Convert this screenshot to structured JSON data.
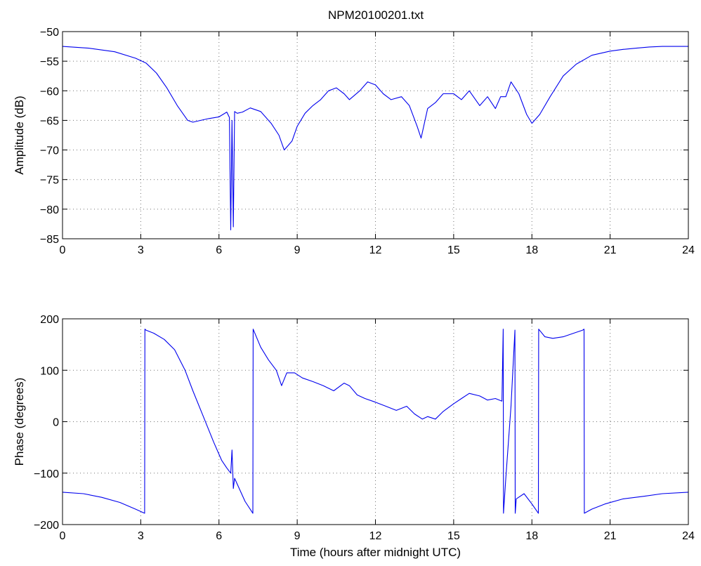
{
  "figure_title": "NPM20100201.txt",
  "colors": {
    "series": "#0000ee",
    "axes": "#000000",
    "background": "#ffffff"
  },
  "chart_data": [
    {
      "type": "line",
      "panel": "top",
      "title": "NPM20100201.txt",
      "xlabel": "",
      "ylabel": "Amplitude (dB)",
      "xlim": [
        0,
        24
      ],
      "ylim": [
        -85,
        -50
      ],
      "xticks": [
        0,
        3,
        6,
        9,
        12,
        15,
        18,
        21,
        24
      ],
      "yticks": [
        -85,
        -80,
        -75,
        -70,
        -65,
        -60,
        -55,
        -50
      ],
      "grid": true,
      "x": [
        0,
        1,
        2,
        2.8,
        3.2,
        3.6,
        4.0,
        4.4,
        4.8,
        5.0,
        5.3,
        5.6,
        6.0,
        6.3,
        6.4,
        6.45,
        6.5,
        6.55,
        6.6,
        6.7,
        6.9,
        7.2,
        7.6,
        8.0,
        8.3,
        8.5,
        8.8,
        9.0,
        9.3,
        9.6,
        9.9,
        10.2,
        10.5,
        10.8,
        11.0,
        11.4,
        11.7,
        12.0,
        12.3,
        12.6,
        13.0,
        13.3,
        13.6,
        13.75,
        14.0,
        14.3,
        14.6,
        15.0,
        15.3,
        15.6,
        16.0,
        16.3,
        16.6,
        16.8,
        17.0,
        17.2,
        17.5,
        17.8,
        18.0,
        18.3,
        18.7,
        19.2,
        19.7,
        20.3,
        21.0,
        21.5,
        22.0,
        22.5,
        23.0,
        23.5,
        24.0
      ],
      "y": [
        -52.5,
        -52.8,
        -53.4,
        -54.5,
        -55.3,
        -57.0,
        -59.5,
        -62.5,
        -65.0,
        -65.3,
        -65.0,
        -64.7,
        -64.4,
        -63.6,
        -64.5,
        -83.5,
        -65.0,
        -83.0,
        -63.5,
        -63.8,
        -63.6,
        -62.9,
        -63.5,
        -65.5,
        -67.5,
        -70.0,
        -68.5,
        -66.0,
        -63.8,
        -62.5,
        -61.5,
        -60.0,
        -59.5,
        -60.5,
        -61.5,
        -60.0,
        -58.5,
        -59.0,
        -60.5,
        -61.5,
        -61.0,
        -62.5,
        -66.0,
        -68.0,
        -63.0,
        -62.0,
        -60.5,
        -60.5,
        -61.5,
        -60.0,
        -62.5,
        -61.0,
        -63.0,
        -61.0,
        -61.0,
        -58.5,
        -60.5,
        -64.0,
        -65.5,
        -64.0,
        -61.0,
        -57.5,
        -55.5,
        -54.0,
        -53.3,
        -53.0,
        -52.8,
        -52.6,
        -52.5,
        -52.5,
        -52.5
      ]
    },
    {
      "type": "line",
      "panel": "bottom",
      "title": "",
      "xlabel": "Time (hours after midnight UTC)",
      "ylabel": "Phase (degrees)",
      "xlim": [
        0,
        24
      ],
      "ylim": [
        -200,
        200
      ],
      "xticks": [
        0,
        3,
        6,
        9,
        12,
        15,
        18,
        21,
        24
      ],
      "yticks": [
        -200,
        -100,
        0,
        100,
        200
      ],
      "grid": true,
      "x": [
        0,
        0.8,
        1.5,
        2.2,
        2.8,
        3.15,
        3.16,
        3.2,
        3.5,
        3.9,
        4.3,
        4.7,
        5.0,
        5.4,
        5.8,
        6.1,
        6.3,
        6.45,
        6.5,
        6.55,
        6.6,
        7.0,
        7.3,
        7.31,
        7.35,
        7.6,
        7.9,
        8.2,
        8.4,
        8.6,
        8.9,
        9.2,
        9.6,
        10.0,
        10.4,
        10.8,
        11.0,
        11.3,
        11.6,
        12.0,
        12.4,
        12.8,
        13.2,
        13.5,
        13.8,
        14.0,
        14.3,
        14.6,
        15.0,
        15.3,
        15.6,
        16.0,
        16.3,
        16.6,
        16.85,
        16.9,
        16.91,
        17.0,
        17.2,
        17.35,
        17.36,
        17.4,
        17.7,
        18.0,
        18.25,
        18.26,
        18.5,
        18.8,
        19.2,
        19.6,
        19.95,
        20.0,
        20.01,
        20.3,
        20.8,
        21.5,
        22.3,
        23.0,
        24.0
      ],
      "y": [
        -137,
        -140,
        -147,
        -157,
        -170,
        -178,
        180,
        178,
        172,
        160,
        140,
        100,
        60,
        10,
        -40,
        -75,
        -90,
        -100,
        -55,
        -130,
        -110,
        -155,
        -178,
        180,
        175,
        145,
        120,
        100,
        70,
        95,
        95,
        85,
        78,
        70,
        60,
        75,
        70,
        52,
        45,
        38,
        30,
        22,
        30,
        15,
        5,
        10,
        5,
        20,
        35,
        45,
        55,
        50,
        42,
        45,
        40,
        180,
        -178,
        -110,
        30,
        178,
        -178,
        -150,
        -140,
        -160,
        -178,
        180,
        165,
        162,
        165,
        172,
        178,
        180,
        -178,
        -170,
        -160,
        -150,
        -145,
        -140,
        -137
      ]
    }
  ]
}
